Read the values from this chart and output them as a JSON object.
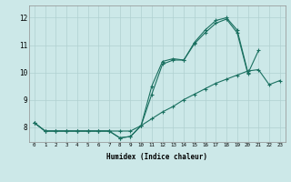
{
  "background_color": "#cce8e8",
  "grid_color": "#b0d0d0",
  "line_color": "#1a7060",
  "xlabel": "Humidex (Indice chaleur)",
  "xlim": [
    -0.5,
    23.5
  ],
  "ylim": [
    7.45,
    12.45
  ],
  "yticks": [
    8,
    9,
    10,
    11,
    12
  ],
  "line1_x": [
    0,
    1,
    2,
    3,
    4,
    5,
    6,
    7,
    8,
    9,
    10,
    11,
    12,
    13,
    14,
    15,
    16,
    17,
    18,
    19,
    20,
    21,
    22,
    23
  ],
  "line1_y": [
    8.15,
    7.85,
    7.85,
    7.85,
    7.85,
    7.85,
    7.85,
    7.85,
    7.85,
    7.85,
    8.05,
    8.3,
    8.55,
    8.75,
    9.0,
    9.2,
    9.4,
    9.6,
    9.75,
    9.9,
    10.05,
    10.1,
    9.55,
    9.7
  ],
  "line2_x": [
    0,
    1,
    2,
    3,
    4,
    5,
    6,
    7,
    8,
    9,
    10,
    11,
    12,
    13,
    14,
    15,
    16,
    17,
    18,
    19,
    20
  ],
  "line2_y": [
    8.15,
    7.85,
    7.85,
    7.85,
    7.85,
    7.85,
    7.85,
    7.85,
    7.6,
    7.65,
    8.05,
    9.5,
    10.4,
    10.5,
    10.45,
    11.1,
    11.55,
    11.9,
    12.0,
    11.55,
    10.0
  ],
  "line3_x": [
    0,
    1,
    2,
    3,
    4,
    5,
    6,
    7,
    8,
    9,
    10,
    11,
    12,
    13,
    14,
    15,
    16,
    17,
    18,
    19,
    20,
    21
  ],
  "line3_y": [
    8.15,
    7.85,
    7.85,
    7.85,
    7.85,
    7.85,
    7.85,
    7.85,
    7.6,
    7.65,
    8.05,
    9.2,
    10.3,
    10.45,
    10.45,
    11.05,
    11.45,
    11.8,
    11.95,
    11.45,
    9.95,
    10.8
  ]
}
